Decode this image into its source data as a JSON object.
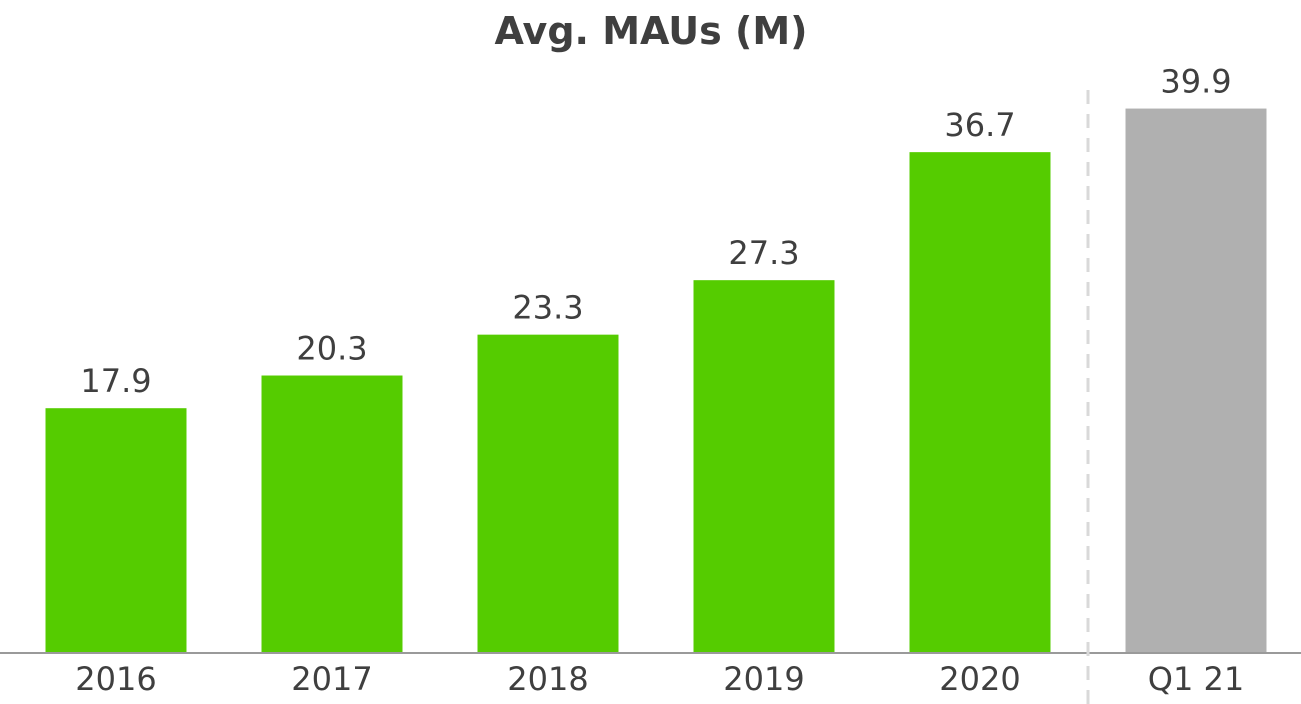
{
  "chart_data": {
    "type": "bar",
    "title": "Avg. MAUs (M)",
    "xlabel": "",
    "ylabel": "",
    "categories": [
      "2016",
      "2017",
      "2018",
      "2019",
      "2020",
      "Q1 21"
    ],
    "values": [
      17.9,
      20.3,
      23.3,
      27.3,
      36.7,
      39.9
    ],
    "value_labels": [
      "17.9",
      "20.3",
      "23.3",
      "27.3",
      "36.7",
      "39.9"
    ],
    "ylim": [
      0,
      40
    ],
    "grid": false,
    "legend": "none",
    "annotations": [
      "dashed vertical separator between 2020 and Q1 21"
    ]
  },
  "colors": {
    "annual_bar": "#55cc00",
    "quarter_bar": "#b0b0b0",
    "axis": "#9a9a9a",
    "separator": "#d9d9d9",
    "text": "#3f3f3f"
  }
}
